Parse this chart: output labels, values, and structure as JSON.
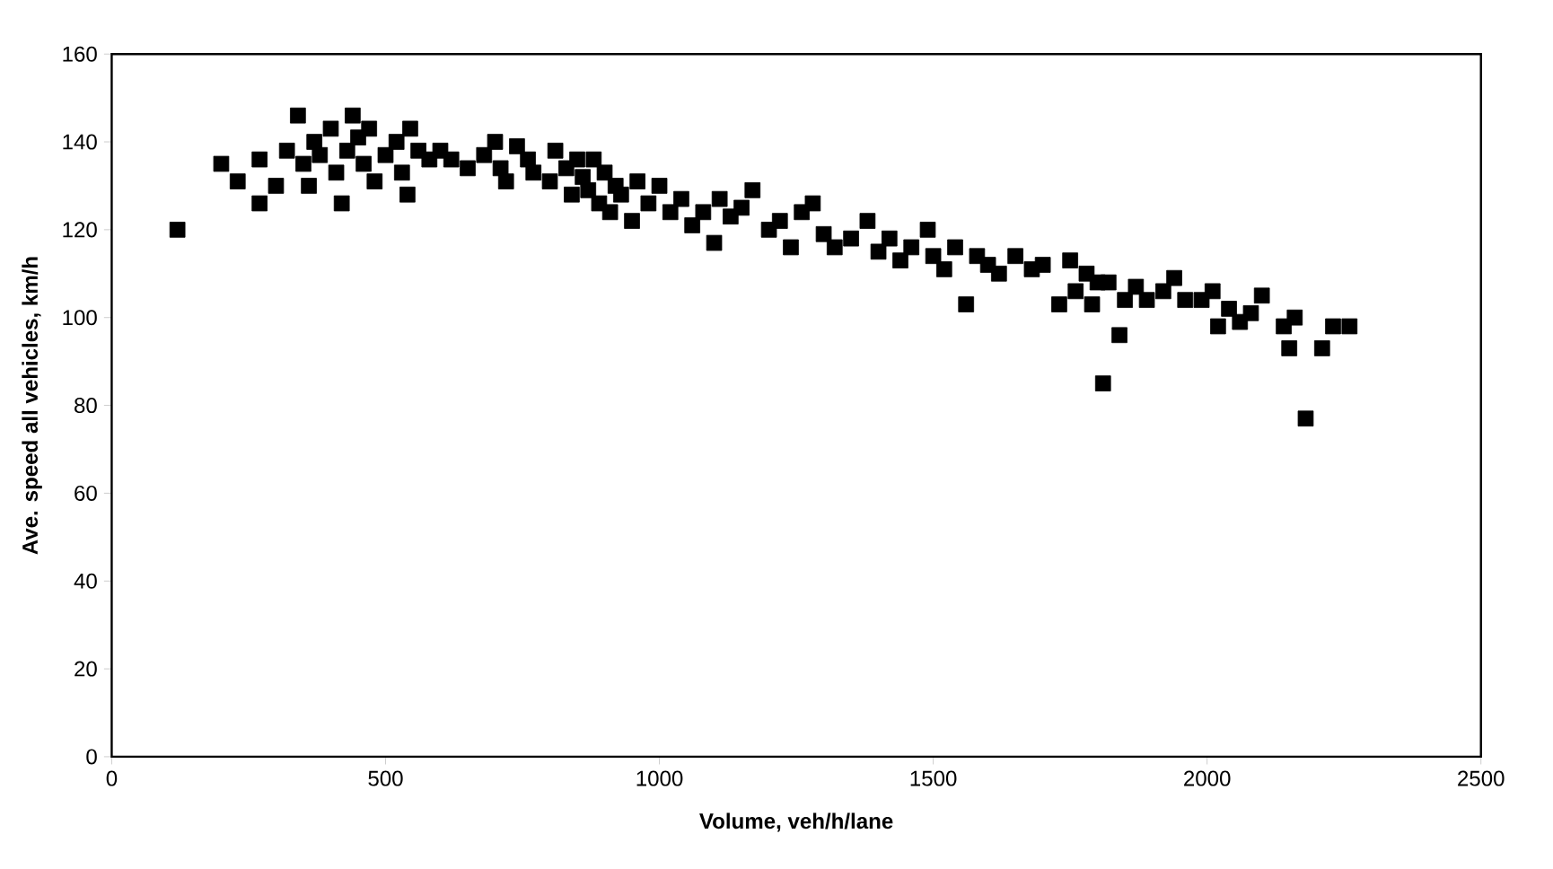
{
  "chart_data": {
    "type": "scatter",
    "xlabel": "Volume, veh/h/lane",
    "ylabel": "Ave. speed all vehicles, km/h",
    "xlim": [
      0,
      2500
    ],
    "xticks": [
      0,
      500,
      1000,
      1500,
      2000,
      2500
    ],
    "ylim": [
      0,
      160
    ],
    "yticks": [
      0,
      20,
      40,
      60,
      80,
      100,
      120,
      140,
      160
    ],
    "marker": "square",
    "series": [
      {
        "color": "#000000",
        "x": [
          120,
          200,
          230,
          270,
          270,
          300,
          320,
          340,
          350,
          360,
          370,
          380,
          400,
          410,
          420,
          430,
          440,
          450,
          460,
          470,
          480,
          500,
          520,
          530,
          540,
          545,
          560,
          580,
          600,
          620,
          650,
          680,
          700,
          710,
          720,
          740,
          760,
          770,
          800,
          810,
          830,
          840,
          850,
          860,
          870,
          880,
          890,
          900,
          910,
          920,
          930,
          950,
          960,
          980,
          1000,
          1020,
          1040,
          1060,
          1080,
          1100,
          1110,
          1130,
          1150,
          1170,
          1200,
          1220,
          1240,
          1260,
          1280,
          1300,
          1320,
          1350,
          1380,
          1400,
          1420,
          1440,
          1460,
          1490,
          1500,
          1520,
          1540,
          1560,
          1580,
          1600,
          1620,
          1650,
          1680,
          1700,
          1730,
          1750,
          1760,
          1780,
          1790,
          1800,
          1810,
          1820,
          1840,
          1850,
          1870,
          1890,
          1920,
          1940,
          1960,
          1990,
          2010,
          2020,
          2040,
          2060,
          2080,
          2100,
          2140,
          2150,
          2160,
          2180,
          2210,
          2230,
          2260
        ],
        "values": [
          120,
          135,
          131,
          126,
          136,
          130,
          138,
          146,
          135,
          130,
          140,
          137,
          143,
          133,
          126,
          138,
          146,
          141,
          135,
          143,
          131,
          137,
          140,
          133,
          128,
          143,
          138,
          136,
          138,
          136,
          134,
          137,
          140,
          134,
          131,
          139,
          136,
          133,
          131,
          138,
          134,
          128,
          136,
          132,
          129,
          136,
          126,
          133,
          124,
          130,
          128,
          122,
          131,
          126,
          130,
          124,
          127,
          121,
          124,
          117,
          127,
          123,
          125,
          129,
          120,
          122,
          116,
          124,
          126,
          119,
          116,
          118,
          122,
          115,
          118,
          113,
          116,
          120,
          114,
          111,
          116,
          103,
          114,
          112,
          110,
          114,
          111,
          112,
          103,
          113,
          106,
          110,
          103,
          108,
          85,
          108,
          96,
          104,
          107,
          104,
          106,
          109,
          104,
          104,
          106,
          98,
          102,
          99,
          101,
          105,
          98,
          93,
          100,
          77,
          93,
          98,
          98
        ]
      }
    ]
  }
}
